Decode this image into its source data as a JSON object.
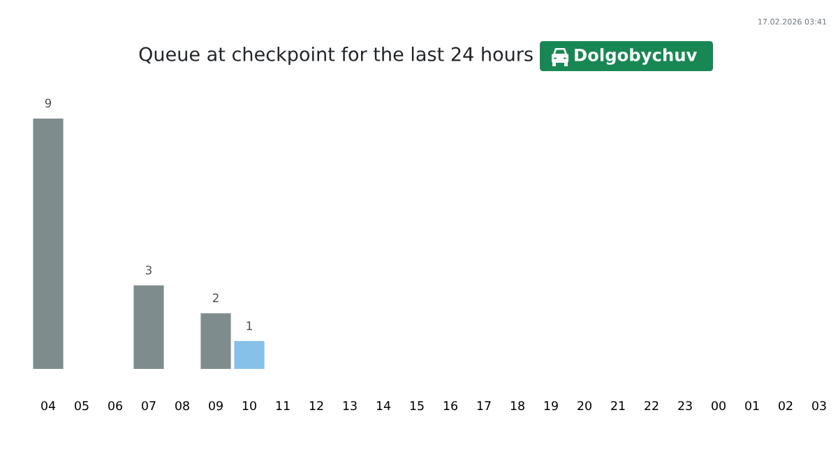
{
  "chart_data": {
    "type": "bar",
    "title": "Queue at checkpoint for the last 24 hours",
    "subtitle": "Dolgobychuv",
    "annotations": [
      "17.02.2026 03:41"
    ],
    "categories": [
      "04",
      "05",
      "06",
      "07",
      "08",
      "09",
      "10",
      "11",
      "12",
      "13",
      "14",
      "15",
      "16",
      "17",
      "18",
      "19",
      "20",
      "21",
      "22",
      "23",
      "00",
      "01",
      "02",
      "03"
    ],
    "values": [
      9,
      null,
      null,
      3,
      null,
      2,
      1,
      null,
      null,
      null,
      null,
      null,
      null,
      null,
      null,
      null,
      null,
      null,
      null,
      null,
      null,
      null,
      null,
      null
    ],
    "colors": [
      "#7f8c8d",
      "#7f8c8d",
      "#7f8c8d",
      "#7f8c8d",
      "#7f8c8d",
      "#7f8c8d",
      "#85c1e9",
      "#7f8c8d",
      "#7f8c8d",
      "#7f8c8d",
      "#7f8c8d",
      "#7f8c8d",
      "#7f8c8d",
      "#7f8c8d",
      "#7f8c8d",
      "#7f8c8d",
      "#7f8c8d",
      "#7f8c8d",
      "#7f8c8d",
      "#7f8c8d",
      "#7f8c8d",
      "#7f8c8d",
      "#7f8c8d",
      "#7f8c8d"
    ],
    "data_labels": true,
    "tick_labels": "x"
  }
}
